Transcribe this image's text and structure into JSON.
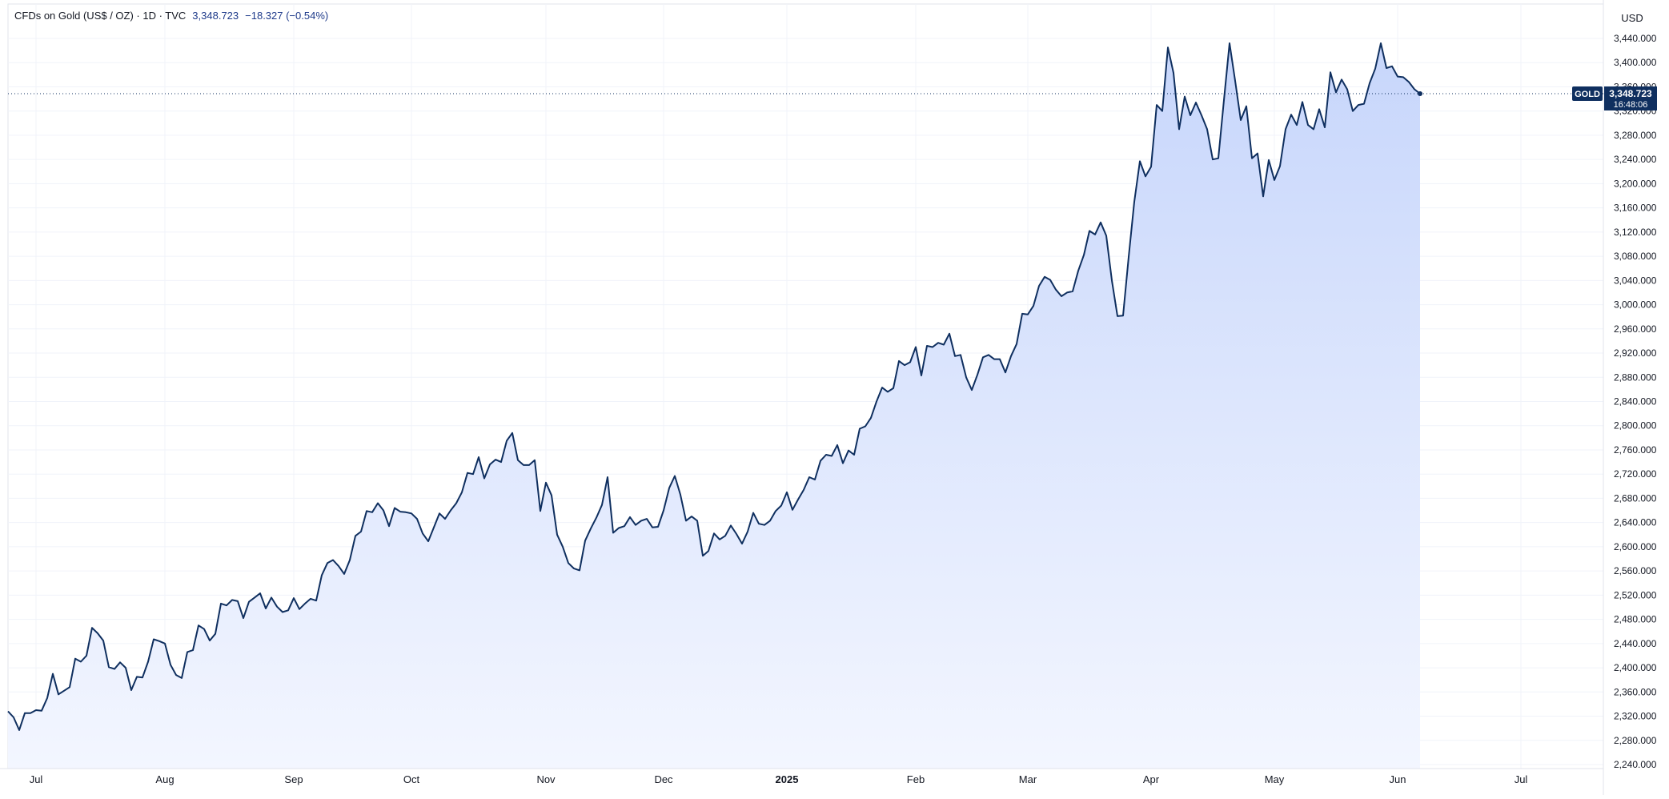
{
  "legend": {
    "title": "CFDs on Gold (US$ / OZ) · 1D · TVC",
    "price": "3,348.723",
    "change": "−18.327 (−0.54%)"
  },
  "currency": "USD",
  "marker": {
    "symbol": "GOLD",
    "price": "3,348.723",
    "countdown": "16:48:06"
  },
  "colors": {
    "line": "#0f2f5f",
    "fill_top": "#c7d6fb",
    "fill_bottom": "#f3f6ff",
    "grid": "#f0f3fa",
    "axis_text": "#131722",
    "marker_bg": "#0f2f5f",
    "dotted_line": "#0f2f5f"
  },
  "chart_data": {
    "type": "area",
    "ylim": [
      2240,
      3470
    ],
    "y_ticks": [
      "2,240.000",
      "2,280.000",
      "2,320.000",
      "2,360.000",
      "2,400.000",
      "2,440.000",
      "2,480.000",
      "2,520.000",
      "2,560.000",
      "2,600.000",
      "2,640.000",
      "2,680.000",
      "2,720.000",
      "2,760.000",
      "2,800.000",
      "2,840.000",
      "2,880.000",
      "2,920.000",
      "2,960.000",
      "3,000.000",
      "3,040.000",
      "3,080.000",
      "3,120.000",
      "3,160.000",
      "3,200.000",
      "3,240.000",
      "3,280.000",
      "3,320.000",
      "3,360.000",
      "3,400.000",
      "3,440.000"
    ],
    "x_labels": [
      {
        "label": "Jul",
        "bold": false,
        "index": 5
      },
      {
        "label": "Aug",
        "bold": false,
        "index": 28
      },
      {
        "label": "Sep",
        "bold": false,
        "index": 51
      },
      {
        "label": "Oct",
        "bold": false,
        "index": 72
      },
      {
        "label": "Nov",
        "bold": false,
        "index": 96
      },
      {
        "label": "Dec",
        "bold": false,
        "index": 117
      },
      {
        "label": "2025",
        "bold": true,
        "index": 139
      },
      {
        "label": "Feb",
        "bold": false,
        "index": 162
      },
      {
        "label": "Mar",
        "bold": false,
        "index": 182
      },
      {
        "label": "Apr",
        "bold": false,
        "index": 204
      },
      {
        "label": "May",
        "bold": false,
        "index": 226
      },
      {
        "label": "Jun",
        "bold": false,
        "index": 248
      },
      {
        "label": "Jul",
        "bold": false,
        "index": 270
      }
    ],
    "x_total": 274,
    "values": [
      2328,
      2318,
      2297,
      2325,
      2325,
      2330,
      2329,
      2350,
      2390,
      2356,
      2362,
      2368,
      2415,
      2410,
      2420,
      2466,
      2457,
      2445,
      2401,
      2398,
      2409,
      2400,
      2363,
      2385,
      2384,
      2410,
      2447,
      2444,
      2440,
      2405,
      2388,
      2383,
      2426,
      2429,
      2470,
      2464,
      2445,
      2456,
      2506,
      2503,
      2512,
      2510,
      2482,
      2509,
      2516,
      2523,
      2498,
      2516,
      2501,
      2492,
      2495,
      2515,
      2497,
      2506,
      2514,
      2511,
      2553,
      2573,
      2578,
      2568,
      2555,
      2578,
      2618,
      2625,
      2659,
      2657,
      2672,
      2660,
      2634,
      2664,
      2658,
      2657,
      2655,
      2646,
      2622,
      2609,
      2632,
      2655,
      2646,
      2660,
      2672,
      2690,
      2722,
      2720,
      2748,
      2713,
      2736,
      2744,
      2740,
      2775,
      2788,
      2743,
      2735,
      2735,
      2743,
      2659,
      2706,
      2685,
      2620,
      2600,
      2573,
      2564,
      2561,
      2610,
      2630,
      2648,
      2669,
      2715,
      2623,
      2631,
      2634,
      2649,
      2636,
      2643,
      2646,
      2632,
      2633,
      2660,
      2697,
      2717,
      2686,
      2643,
      2650,
      2643,
      2585,
      2593,
      2622,
      2612,
      2618,
      2635,
      2621,
      2605,
      2625,
      2656,
      2638,
      2636,
      2643,
      2659,
      2668,
      2690,
      2661,
      2678,
      2694,
      2715,
      2711,
      2742,
      2752,
      2750,
      2768,
      2738,
      2759,
      2752,
      2795,
      2799,
      2813,
      2840,
      2863,
      2856,
      2862,
      2907,
      2900,
      2905,
      2930,
      2883,
      2932,
      2930,
      2937,
      2934,
      2952,
      2915,
      2917,
      2880,
      2859,
      2884,
      2913,
      2917,
      2910,
      2910,
      2888,
      2915,
      2935,
      2985,
      2984,
      2998,
      3031,
      3046,
      3041,
      3025,
      3014,
      3020,
      3022,
      3056,
      3082,
      3122,
      3116,
      3136,
      3114,
      3040,
      2981,
      2982,
      3079,
      3170,
      3237,
      3212,
      3228,
      3330,
      3320,
      3425,
      3383,
      3290,
      3344,
      3313,
      3334,
      3313,
      3290,
      3240,
      3242,
      3338,
      3432,
      3370,
      3305,
      3328,
      3242,
      3250,
      3179,
      3239,
      3206,
      3229,
      3290,
      3314,
      3297,
      3335,
      3297,
      3290,
      3323,
      3293,
      3384,
      3351,
      3372,
      3356,
      3320,
      3330,
      3332,
      3366,
      3390,
      3432,
      3391,
      3394,
      3377,
      3376,
      3368,
      3356,
      3348.723
    ]
  }
}
